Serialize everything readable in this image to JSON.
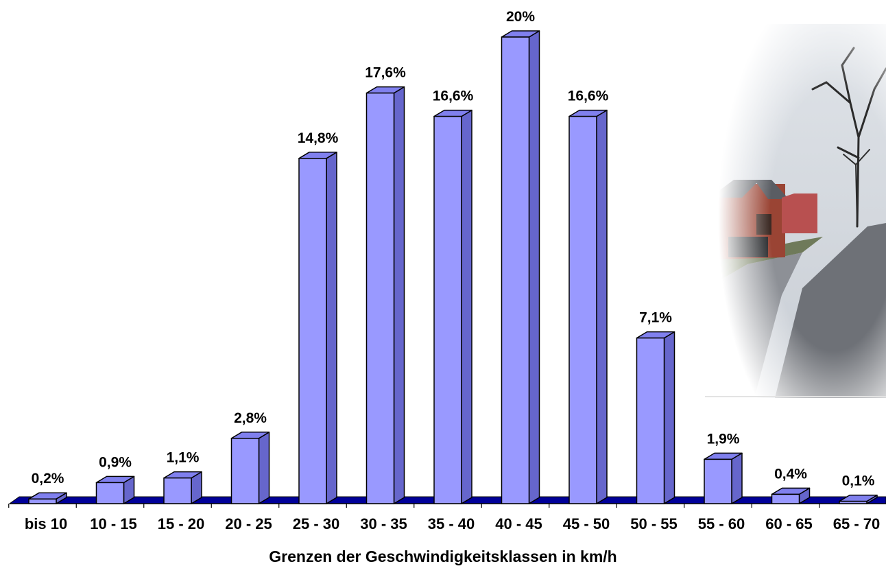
{
  "chart_data": {
    "type": "bar",
    "xlabel": "Grenzen der Geschwindigkeitsklassen in km/h",
    "ylabel": "",
    "ylim": [
      0,
      20
    ],
    "grid": false,
    "legend": "none",
    "categories": [
      "bis 10",
      "10 - 15",
      "15 - 20",
      "20 - 25",
      "25 - 30",
      "30 - 35",
      "35 - 40",
      "40 - 45",
      "45 - 50",
      "50 - 55",
      "55 - 60",
      "60 - 65",
      "65 - 70"
    ],
    "values": [
      0.2,
      0.9,
      1.1,
      2.8,
      14.8,
      17.6,
      16.6,
      20,
      16.6,
      7.1,
      1.9,
      0.4,
      0.1
    ],
    "data_labels": [
      "0,2%",
      "0,9%",
      "1,1%",
      "2,8%",
      "14,8%",
      "17,6%",
      "16,6%",
      "20%",
      "16,6%",
      "7,1%",
      "1,9%",
      "0,4%",
      "0,1%"
    ],
    "colors": {
      "bar_front": "#9999ff",
      "bar_top": "#8080ee",
      "bar_side": "#6666cc",
      "floor": "#000099",
      "outline": "#000000"
    },
    "background_photo": "village-road-photo"
  }
}
